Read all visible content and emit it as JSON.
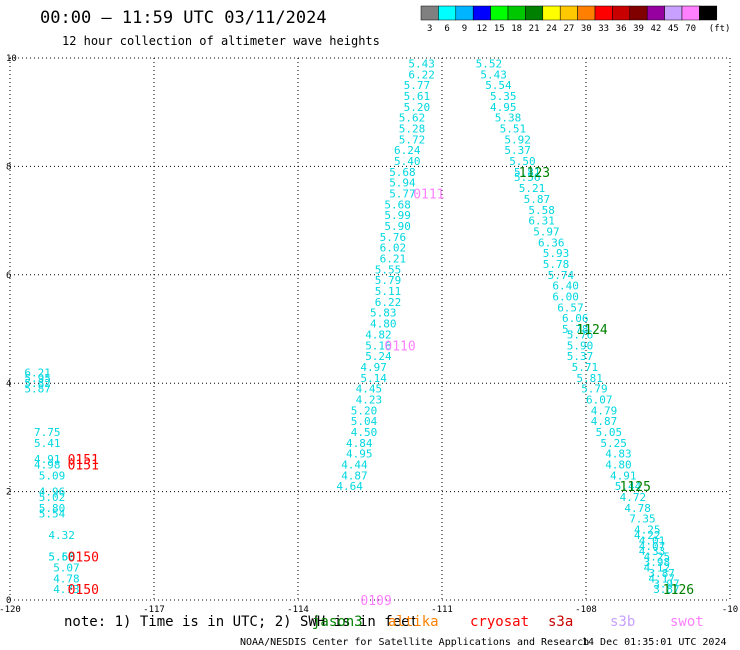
{
  "header": {
    "title": "00:00 — 11:59 UTC 03/11/2024",
    "subtitle": "12 hour collection of altimeter wave heights",
    "scale_unit": "(ft)",
    "scale": [
      {
        "label": "3",
        "color": "#808080"
      },
      {
        "label": "6",
        "color": "#00ffff"
      },
      {
        "label": "9",
        "color": "#00b4ff"
      },
      {
        "label": "12",
        "color": "#0000ff"
      },
      {
        "label": "15",
        "color": "#00ff00"
      },
      {
        "label": "18",
        "color": "#00c800"
      },
      {
        "label": "21",
        "color": "#008000"
      },
      {
        "label": "24",
        "color": "#ffff00"
      },
      {
        "label": "27",
        "color": "#ffc800"
      },
      {
        "label": "30",
        "color": "#ff8000"
      },
      {
        "label": "33",
        "color": "#ff0000"
      },
      {
        "label": "36",
        "color": "#c80000"
      },
      {
        "label": "39",
        "color": "#800000"
      },
      {
        "label": "42",
        "color": "#9600a0"
      },
      {
        "label": "45",
        "color": "#c8a0ff"
      },
      {
        "label": "70",
        "color": "#ff80ff"
      },
      {
        "label": "",
        "color": "#000000"
      }
    ]
  },
  "footer": {
    "note": "note:  1) Time is in UTC; 2) SWH is in feet",
    "satellites": [
      {
        "label": "jason3",
        "color": "#008000"
      },
      {
        "label": "altika",
        "color": "#ff8000"
      },
      {
        "label": "cryosat",
        "color": "#ff0000"
      },
      {
        "label": "s3a",
        "color": "#c80000"
      },
      {
        "label": "s3b",
        "color": "#c8a0ff"
      },
      {
        "label": "swot",
        "color": "#ff80ff"
      }
    ],
    "credit": "NOAA/NESDIS Center for Satellite Applications and Research",
    "timestamp": "14 Dec 01:35:01 UTC 2024"
  },
  "chart_data": {
    "type": "scatter",
    "xlim": [
      -120,
      -105
    ],
    "ylim": [
      0,
      10
    ],
    "x_ticks": [
      "-120",
      "-117",
      "-114",
      "-111",
      "-108",
      "-10"
    ],
    "y_ticks": [
      "0",
      "2",
      "4",
      "6",
      "8",
      "10"
    ],
    "grid": true,
    "point_color": "#00d8e0",
    "tracks": [
      {
        "values": [
          [
            "5.43",
            -111.7,
            9.9
          ],
          [
            "6.22",
            -111.7,
            9.7
          ],
          [
            "5.77",
            -111.8,
            9.5
          ],
          [
            "5.61",
            -111.8,
            9.3
          ],
          [
            "5.20",
            -111.8,
            9.1
          ],
          [
            "5.62",
            -111.9,
            8.9
          ],
          [
            "5.28",
            -111.9,
            8.7
          ],
          [
            "5.72",
            -111.9,
            8.5
          ],
          [
            "6.24",
            -112.0,
            8.3
          ],
          [
            "5.40",
            -112.0,
            8.1
          ],
          [
            "5.68",
            -112.1,
            7.9
          ],
          [
            "5.94",
            -112.1,
            7.7
          ],
          [
            "5.77",
            -112.1,
            7.5
          ],
          [
            "5.68",
            -112.2,
            7.3
          ],
          [
            "5.99",
            -112.2,
            7.1
          ],
          [
            "5.90",
            -112.2,
            6.9
          ],
          [
            "5.76",
            -112.3,
            6.7
          ],
          [
            "6.02",
            -112.3,
            6.5
          ],
          [
            "6.21",
            -112.3,
            6.3
          ],
          [
            "5.55",
            -112.4,
            6.1
          ],
          [
            "5.79",
            -112.4,
            5.9
          ],
          [
            "5.11",
            -112.4,
            5.7
          ],
          [
            "6.22",
            -112.4,
            5.5
          ],
          [
            "5.83",
            -112.5,
            5.3
          ],
          [
            "4.80",
            -112.5,
            5.1
          ],
          [
            "4.82",
            -112.6,
            4.9
          ],
          [
            "5.16",
            -112.6,
            4.7
          ],
          [
            "5.24",
            -112.6,
            4.5
          ],
          [
            "4.97",
            -112.7,
            4.3
          ],
          [
            "5.14",
            -112.7,
            4.1
          ],
          [
            "4.45",
            -112.8,
            3.9
          ],
          [
            "4.23",
            -112.8,
            3.7
          ],
          [
            "5.20",
            -112.9,
            3.5
          ],
          [
            "5.04",
            -112.9,
            3.3
          ],
          [
            "4.50",
            -112.9,
            3.1
          ],
          [
            "4.84",
            -113.0,
            2.9
          ],
          [
            "4.95",
            -113.0,
            2.7
          ],
          [
            "4.44",
            -113.1,
            2.5
          ],
          [
            "4.87",
            -113.1,
            2.3
          ],
          [
            "4.64",
            -113.2,
            2.1
          ]
        ]
      },
      {
        "values": [
          [
            "5.52",
            -110.3,
            9.9
          ],
          [
            "5.43",
            -110.2,
            9.7
          ],
          [
            "5.54",
            -110.1,
            9.5
          ],
          [
            "5.35",
            -110.0,
            9.3
          ],
          [
            "4.95",
            -110.0,
            9.1
          ],
          [
            "5.38",
            -109.9,
            8.9
          ],
          [
            "5.51",
            -109.8,
            8.7
          ],
          [
            "5.92",
            -109.7,
            8.5
          ],
          [
            "5.37",
            -109.7,
            8.3
          ],
          [
            "5.50",
            -109.6,
            8.1
          ],
          [
            "5.81",
            -109.5,
            7.9
          ],
          [
            "5.56",
            -109.5,
            7.8
          ],
          [
            "5.21",
            -109.4,
            7.6
          ],
          [
            "5.87",
            -109.3,
            7.4
          ],
          [
            "5.58",
            -109.2,
            7.2
          ],
          [
            "6.31",
            -109.2,
            7.0
          ],
          [
            "5.97",
            -109.1,
            6.8
          ],
          [
            "6.36",
            -109.0,
            6.6
          ],
          [
            "5.93",
            -108.9,
            6.4
          ],
          [
            "5.78",
            -108.9,
            6.2
          ],
          [
            "5.74",
            -108.8,
            6.0
          ],
          [
            "6.40",
            -108.7,
            5.8
          ],
          [
            "6.00",
            -108.7,
            5.6
          ],
          [
            "6.57",
            -108.6,
            5.4
          ],
          [
            "6.06",
            -108.5,
            5.2
          ],
          [
            "5.78",
            -108.5,
            5.0
          ],
          [
            "5.76",
            -108.4,
            4.9
          ],
          [
            "5.90",
            -108.4,
            4.7
          ],
          [
            "5.37",
            -108.4,
            4.5
          ],
          [
            "5.71",
            -108.3,
            4.3
          ],
          [
            "5.81",
            -108.2,
            4.1
          ],
          [
            "5.79",
            -108.1,
            3.9
          ],
          [
            "6.07",
            -108.0,
            3.7
          ],
          [
            "4.79",
            -107.9,
            3.5
          ],
          [
            "4.87",
            -107.9,
            3.3
          ],
          [
            "5.05",
            -107.8,
            3.1
          ],
          [
            "5.25",
            -107.7,
            2.9
          ],
          [
            "4.83",
            -107.6,
            2.7
          ],
          [
            "4.80",
            -107.6,
            2.5
          ],
          [
            "4.91",
            -107.5,
            2.3
          ],
          [
            "5.44",
            -107.4,
            2.1
          ],
          [
            "4.72",
            -107.3,
            1.9
          ],
          [
            "4.78",
            -107.2,
            1.7
          ],
          [
            "7.35",
            -107.1,
            1.5
          ],
          [
            "4.25",
            -107.0,
            1.3
          ],
          [
            "4.22",
            -107.0,
            1.2
          ],
          [
            "4.01",
            -106.9,
            1.1
          ],
          [
            "4.07",
            -106.9,
            1.0
          ],
          [
            "4.33",
            -106.9,
            0.9
          ],
          [
            "4.25",
            -106.8,
            0.8
          ],
          [
            "3.98",
            -106.8,
            0.7
          ],
          [
            "4.12",
            -106.8,
            0.6
          ],
          [
            "3.87",
            -106.7,
            0.5
          ],
          [
            "4.17",
            -106.7,
            0.4
          ],
          [
            "3.97",
            -106.6,
            0.3
          ],
          [
            "3.87",
            -106.6,
            0.2
          ]
        ]
      },
      {
        "values": [
          [
            "6.21",
            -119.7,
            4.2
          ],
          [
            "5.95",
            -119.7,
            4.1
          ],
          [
            "5.82",
            -119.7,
            4.0
          ],
          [
            "5.87",
            -119.7,
            3.9
          ],
          [
            "7.75",
            -119.5,
            3.1
          ],
          [
            "5.41",
            -119.5,
            2.9
          ],
          [
            "4.91",
            -119.5,
            2.6
          ],
          [
            "4.98",
            -119.5,
            2.5
          ],
          [
            "5.09",
            -119.4,
            2.3
          ],
          [
            "4.96",
            -119.4,
            2.0
          ],
          [
            "5.02",
            -119.4,
            1.9
          ],
          [
            "5.80",
            -119.4,
            1.7
          ],
          [
            "5.54",
            -119.4,
            1.6
          ],
          [
            "4.32",
            -119.2,
            1.2
          ],
          [
            "5.56",
            -119.2,
            0.8
          ],
          [
            "5.60",
            -119.2,
            0.8
          ],
          [
            "5.07",
            -119.1,
            0.6
          ],
          [
            "4.78",
            -119.1,
            0.4
          ],
          [
            "4.73",
            -119.1,
            0.2
          ]
        ]
      }
    ],
    "pass_labels": [
      {
        "text": "1123",
        "x": -109.4,
        "y": 7.9,
        "color": "#008000"
      },
      {
        "text": "1124",
        "x": -108.2,
        "y": 5.0,
        "color": "#008000"
      },
      {
        "text": "1125",
        "x": -107.3,
        "y": 2.1,
        "color": "#008000"
      },
      {
        "text": "1126",
        "x": -106.4,
        "y": 0.2,
        "color": "#008000"
      },
      {
        "text": "0111",
        "x": -111.6,
        "y": 7.5,
        "color": "#ff80ff"
      },
      {
        "text": "0110",
        "x": -112.2,
        "y": 4.7,
        "color": "#ff80ff"
      },
      {
        "text": "0109",
        "x": -112.7,
        "y": 0.0,
        "color": "#ff80ff"
      },
      {
        "text": "0151",
        "x": -118.8,
        "y": 2.6,
        "color": "#ff0000"
      },
      {
        "text": "0151",
        "x": -118.8,
        "y": 2.5,
        "color": "#ff0000"
      },
      {
        "text": "0150",
        "x": -118.8,
        "y": 0.8,
        "color": "#ff0000"
      },
      {
        "text": "0150",
        "x": -118.8,
        "y": 0.2,
        "color": "#ff0000"
      }
    ]
  }
}
